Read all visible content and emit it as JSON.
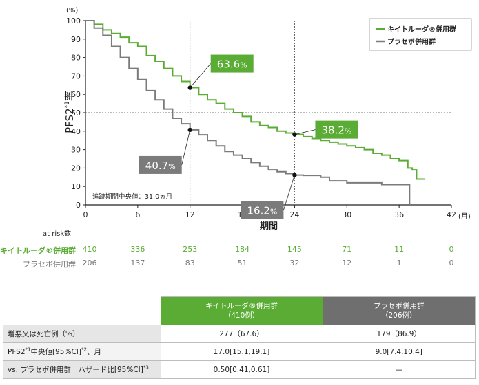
{
  "chart_data": {
    "type": "line",
    "y_unit": "(%)",
    "x_unit": "(月)",
    "ylabel_main": "PFS2",
    "ylabel_sup": "*1",
    "ylabel_end": "率",
    "xlabel": "期間",
    "xlim": [
      0,
      42
    ],
    "ylim": [
      0,
      100
    ],
    "x_ticks": [
      "0",
      "6",
      "12",
      "18",
      "24",
      "30",
      "36",
      "42"
    ],
    "y_ticks": [
      "0",
      "10",
      "20",
      "30",
      "40",
      "50",
      "60",
      "70",
      "80",
      "90",
      "100"
    ],
    "series": [
      {
        "name": "キイトルーダ®併用群",
        "color": "#5aac35",
        "x": [
          0,
          1,
          2,
          3,
          4,
          5,
          6,
          7,
          8,
          9,
          10,
          11,
          12,
          13,
          14,
          15,
          16,
          17,
          18,
          19,
          20,
          21,
          22,
          23,
          24,
          25,
          26,
          27,
          28,
          29,
          30,
          31,
          32,
          33,
          34,
          35,
          36,
          37,
          37.5,
          38,
          39
        ],
        "y": [
          100,
          98,
          95,
          93,
          91,
          88,
          86,
          81,
          78,
          74,
          70,
          67,
          63.6,
          60,
          57,
          55,
          52,
          50,
          48,
          45,
          43,
          42,
          40,
          39,
          38.2,
          37,
          36,
          35,
          34,
          33,
          32,
          31,
          30,
          28,
          27,
          25,
          24,
          20,
          19,
          14,
          14
        ]
      },
      {
        "name": "プラセボ併用群",
        "color": "#7b7b7b",
        "x": [
          0,
          1,
          2,
          3,
          4,
          5,
          6,
          7,
          8,
          9,
          10,
          11,
          12,
          13,
          14,
          15,
          16,
          17,
          18,
          19,
          20,
          21,
          22,
          23,
          24,
          25,
          26,
          27,
          28,
          29,
          30,
          31,
          32,
          33,
          34,
          35,
          36,
          37,
          37.2
        ],
        "y": [
          100,
          96,
          92,
          86,
          80,
          74,
          68,
          62,
          57,
          52,
          47,
          44,
          40.7,
          38,
          35,
          32,
          29,
          27,
          25,
          23,
          21,
          19,
          18,
          17,
          16.2,
          16,
          16,
          15,
          13,
          13,
          12,
          12,
          12,
          12,
          11,
          11,
          11,
          11,
          0
        ]
      }
    ],
    "reference_lines": {
      "x": [
        12,
        24
      ],
      "y": [
        50
      ]
    },
    "annotations": [
      {
        "label": "63.6",
        "pct": "%",
        "x": 12,
        "y": 63.6,
        "series": 0
      },
      {
        "label": "40.7",
        "pct": "%",
        "x": 12,
        "y": 40.7,
        "series": 1
      },
      {
        "label": "38.2",
        "pct": "%",
        "x": 24,
        "y": 38.2,
        "series": 0
      },
      {
        "label": "16.2",
        "pct": "%",
        "x": 24,
        "y": 16.2,
        "series": 1
      }
    ],
    "median_note": "追跡期間中央値：31.0ヵ月",
    "legend_position": "top-right"
  },
  "at_risk": {
    "title": "at risk数",
    "rows": [
      {
        "label": "キイトルーダ®併用群",
        "color": "#5aac35",
        "values": [
          "410",
          "336",
          "253",
          "184",
          "145",
          "71",
          "11",
          "0"
        ]
      },
      {
        "label": "プラセボ併用群",
        "color": "#777777",
        "values": [
          "206",
          "137",
          "83",
          "51",
          "32",
          "12",
          "1",
          "0"
        ]
      }
    ]
  },
  "table": {
    "col1_header_line1": "キイトルーダ®併用群",
    "col1_header_line2": "（410例）",
    "col2_header_line1": "プラセボ併用群",
    "col2_header_line2": "（206例）",
    "col1_color": "#5aac35",
    "col2_color": "#6f6f6f",
    "rows": [
      {
        "label": "増悪又は死亡例（%）",
        "label_sup": "",
        "label_tail": "",
        "sup2": "",
        "v1": "277（67.6）",
        "v2": "179（86.9）"
      },
      {
        "label": "PFS2",
        "label_sup": "*1",
        "label_tail": "中央値[95%CI]",
        "sup2": "*2",
        "tail2": "、月",
        "v1": "17.0[15.1,19.1]",
        "v2": "9.0[7.4,10.4]"
      },
      {
        "label": "vs. プラセボ併用群　ハザード比[95%CI]",
        "label_sup": "*3",
        "label_tail": "",
        "sup2": "",
        "v1": "0.50[0.41,0.61]",
        "v2": "—"
      }
    ]
  }
}
